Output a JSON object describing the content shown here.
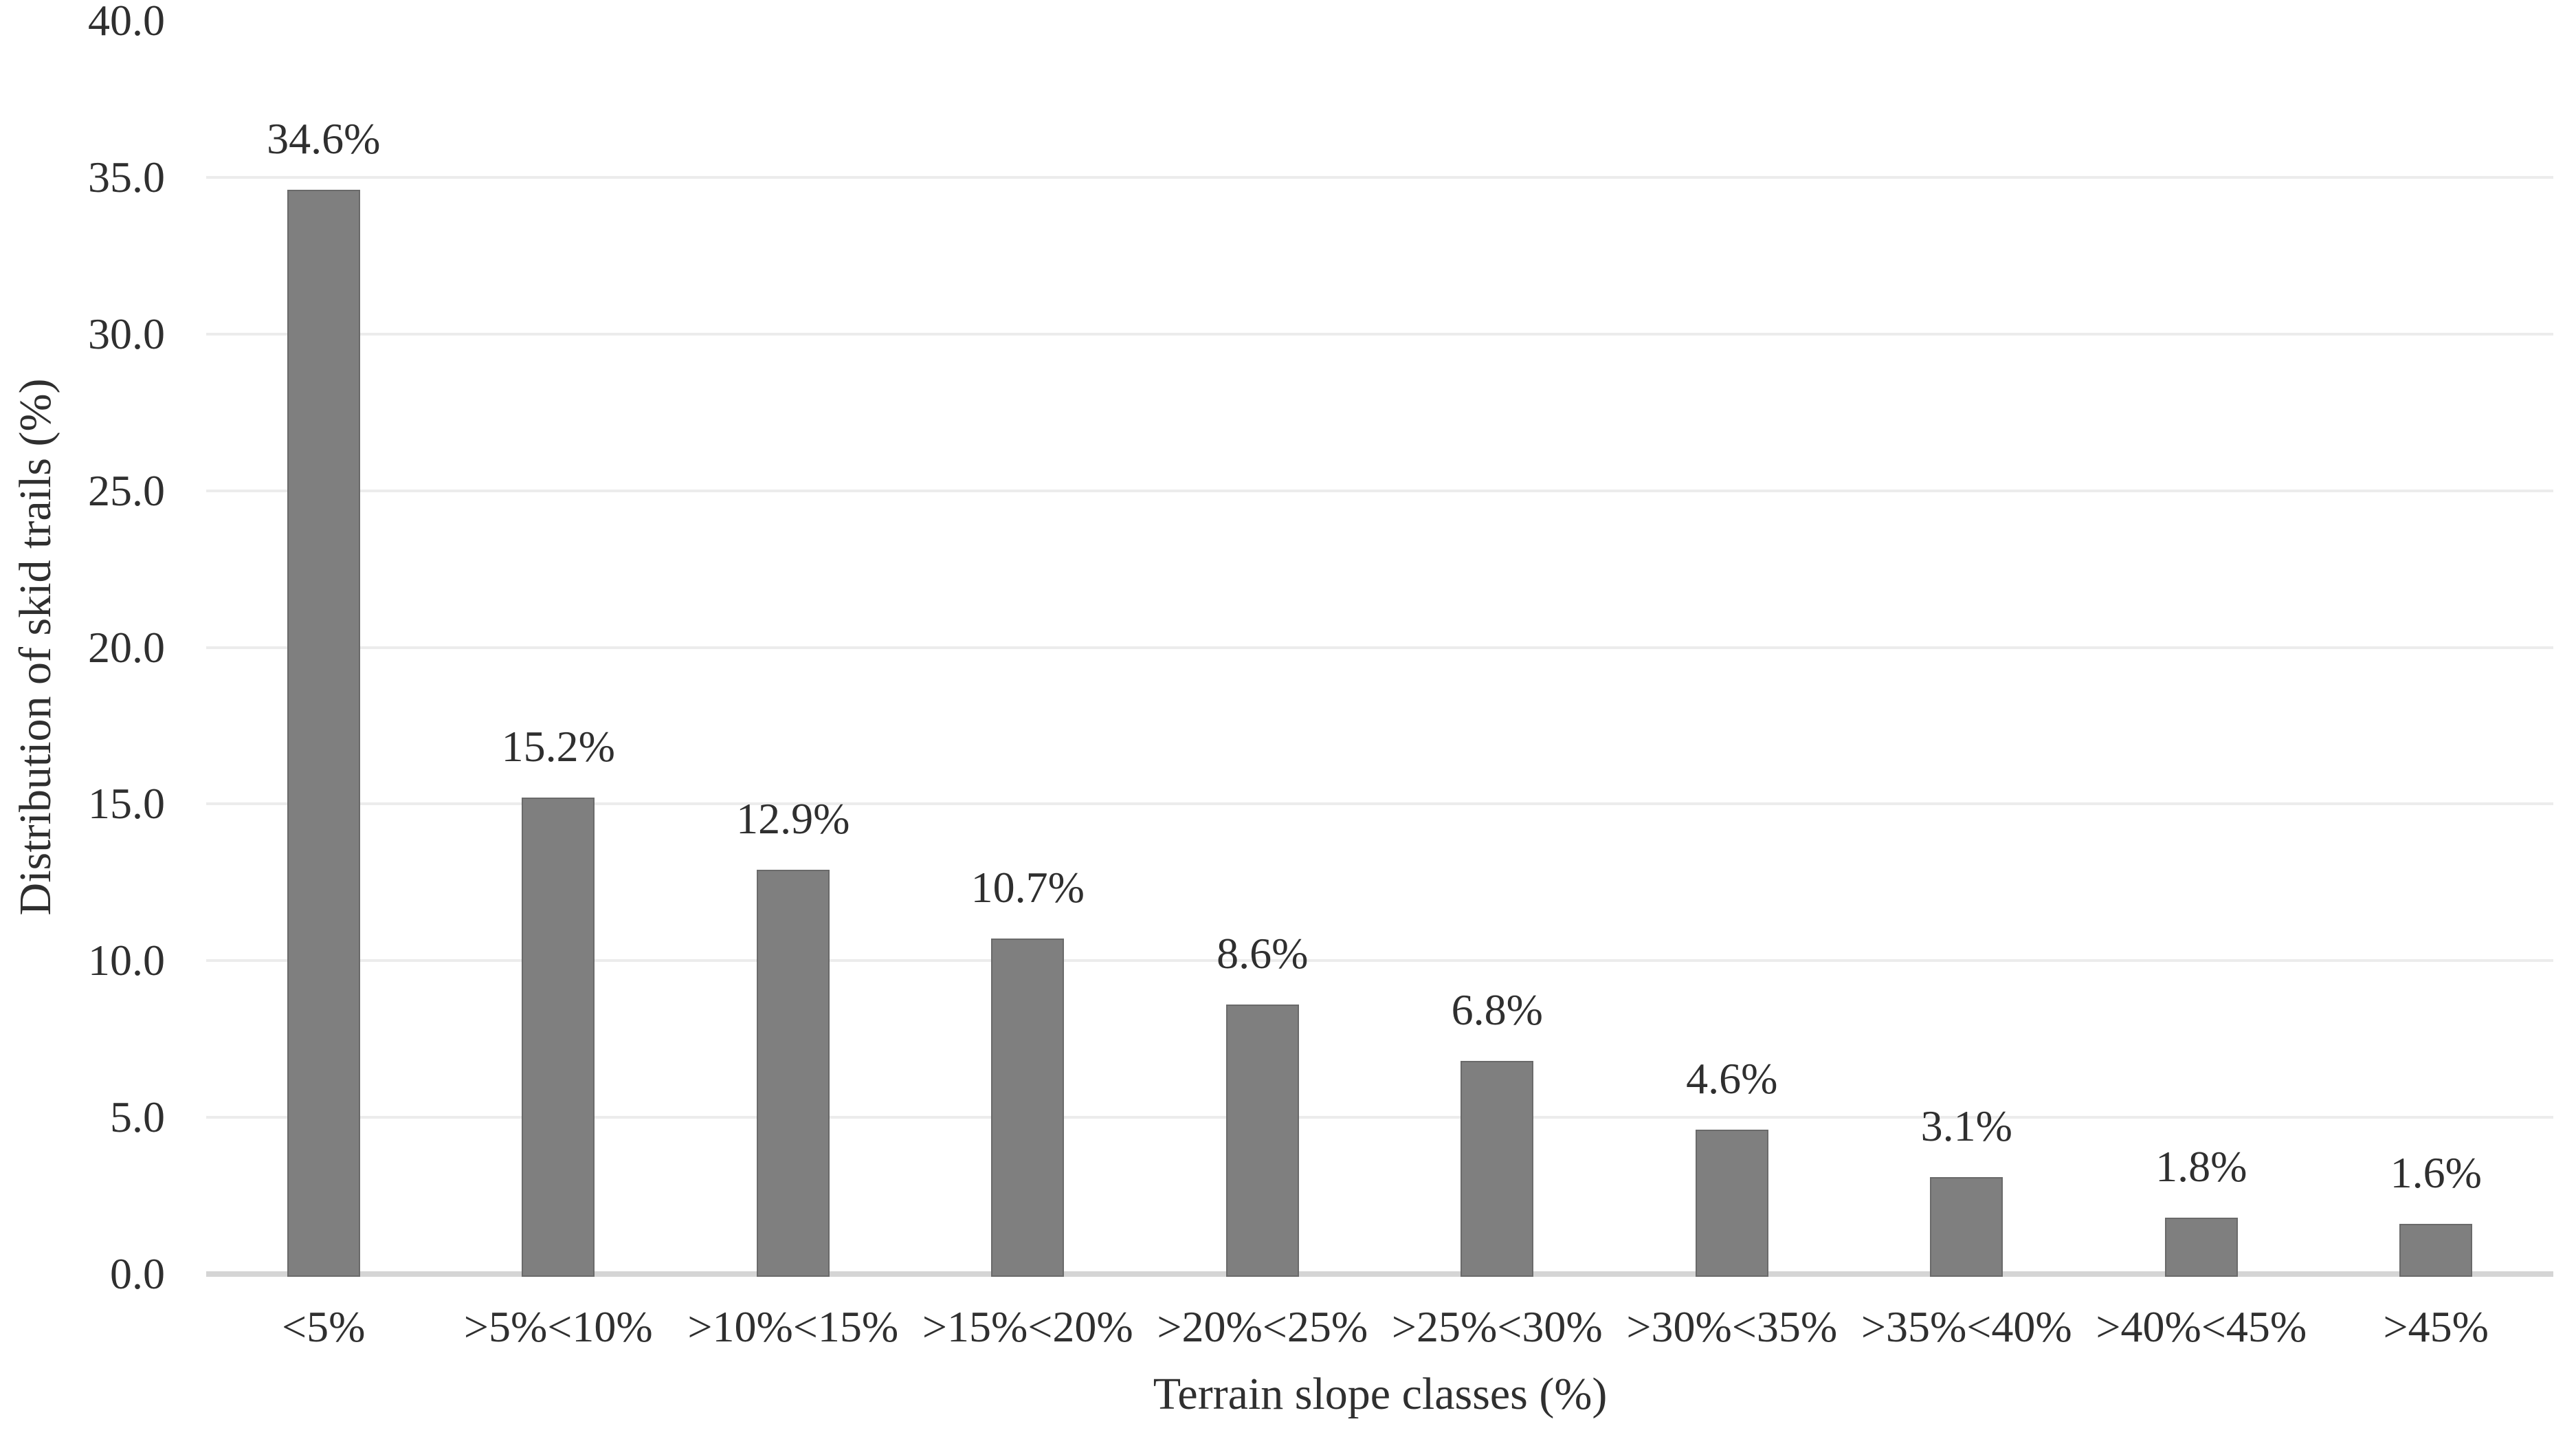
{
  "chart_data": {
    "type": "bar",
    "xlabel": "Terrain slope classes (%)",
    "ylabel": "Distribution of skid trails (%)",
    "categories": [
      "<5%",
      ">5%<10%",
      ">10%<15%",
      ">15%<20%",
      ">20%<25%",
      ">25%<30%",
      ">30%<35%",
      ">35%<40%",
      ">40%<45%",
      ">45%"
    ],
    "values": [
      34.6,
      15.2,
      12.9,
      10.7,
      8.6,
      6.8,
      4.6,
      3.1,
      1.8,
      1.6
    ],
    "data_labels": [
      "34.6%",
      "15.2%",
      "12.9%",
      "10.7%",
      "8.6%",
      "6.8%",
      "4.6%",
      "3.1%",
      "1.8%",
      "1.6%"
    ],
    "ylim": [
      0,
      40
    ],
    "yticks": [
      {
        "label": "0.0",
        "value": 0
      },
      {
        "label": "5.0",
        "value": 5
      },
      {
        "label": "10.0",
        "value": 10
      },
      {
        "label": "15.0",
        "value": 15
      },
      {
        "label": "20.0",
        "value": 20
      },
      {
        "label": "25.0",
        "value": 25
      },
      {
        "label": "30.0",
        "value": 30
      },
      {
        "label": "35.0",
        "value": 35
      },
      {
        "label": "40.0",
        "value": 40
      }
    ],
    "grid": true,
    "legend": "none",
    "colors": {
      "bar": "#7f7f7f",
      "bar_border": "#6a6a6a",
      "gridline": "#ececec",
      "axis_line": "#d5d5d5",
      "text": "#2f2f2f",
      "background": "#ffffff"
    }
  }
}
